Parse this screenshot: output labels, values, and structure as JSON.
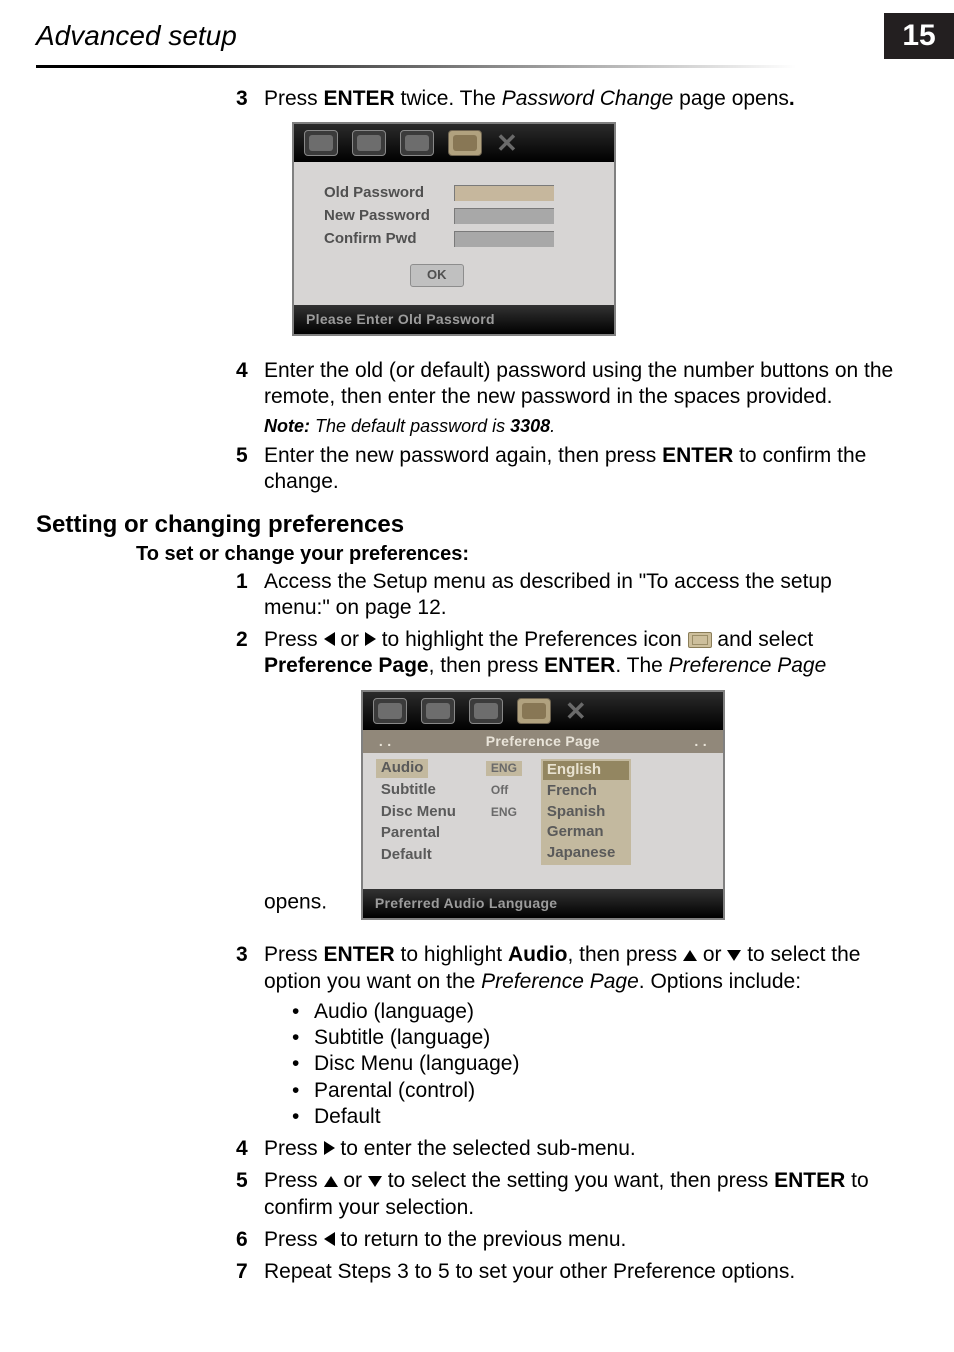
{
  "header": {
    "section": "Advanced setup",
    "page_number": "15"
  },
  "block_a": {
    "step3": {
      "num": "3",
      "pre": "Press ",
      "btn": "ENTER",
      "mid": " twice. The ",
      "ital": "Password Change",
      "post": " page opens"
    },
    "pwd_dialog": {
      "row1": "Old Password",
      "row2": "New Password",
      "row3": "Confirm Pwd",
      "ok": "OK",
      "status": "Please Enter Old Password"
    },
    "step4": {
      "num": "4",
      "text": "Enter the old (or default) password using the number buttons on the remote, then enter the new password in the spaces provided.",
      "note_lead": "Note:",
      "note_mid": " The default password is ",
      "note_bold": "3308",
      "note_end": "."
    },
    "step5": {
      "num": "5",
      "pre": "Enter the new password again, then press ",
      "btn": "ENTER",
      "post": " to confirm the change."
    }
  },
  "subhead": "Setting or changing preferences",
  "proc_head": "To set or change your preferences:",
  "block_b": {
    "step1": {
      "num": "1",
      "text": "Access the Setup menu as described in \"To access the setup menu:\" on page 12."
    },
    "step2": {
      "num": "2",
      "pre": "Press ",
      "mid1": " or ",
      "mid2": " to highlight the Preferences icon ",
      "mid3": " and select ",
      "link": "Preference Page",
      "mid4": ", then press ",
      "btn": "ENTER",
      "mid5": ". The ",
      "ital": "Preference Page",
      "post": " opens."
    },
    "pref_dialog": {
      "banner_left": ". .",
      "banner_mid": "Preference Page",
      "banner_right": ". .",
      "labels": {
        "a": "Audio",
        "b": "Subtitle",
        "c": "Disc  Menu",
        "d": "Parental",
        "e": "Default"
      },
      "small": {
        "a": "ENG",
        "b": "Off",
        "c": "ENG"
      },
      "opts": {
        "a": "English",
        "b": "French",
        "c": "Spanish",
        "d": "German",
        "e": "Japanese"
      },
      "status": "Preferred Audio Language"
    },
    "step3": {
      "num": "3",
      "pre": "Press ",
      "btn": "ENTER",
      "mid1": " to highlight ",
      "link": "Audio",
      "mid2": ", then press ",
      "mid3": " or ",
      "mid4": " to select the option you want on the ",
      "ital": "Preference Page",
      "post": ". Options include:"
    },
    "bullets": {
      "a": "Audio (language)",
      "b": "Subtitle (language)",
      "c": "Disc Menu (language)",
      "d": "Parental (control)",
      "e": "Default"
    },
    "step4": {
      "num": "4",
      "pre": "Press ",
      "post": " to enter the selected sub-menu."
    },
    "step5": {
      "num": "5",
      "pre": "Press ",
      "mid1": " or ",
      "mid2": " to select the setting you want, then press ",
      "btn": "ENTER",
      "post": " to confirm your selection."
    },
    "step6": {
      "num": "6",
      "pre": "Press ",
      "post": " to return to the previous menu."
    },
    "step7": {
      "num": "7",
      "text": "Repeat Steps 3 to 5 to set your other Preference options."
    }
  }
}
